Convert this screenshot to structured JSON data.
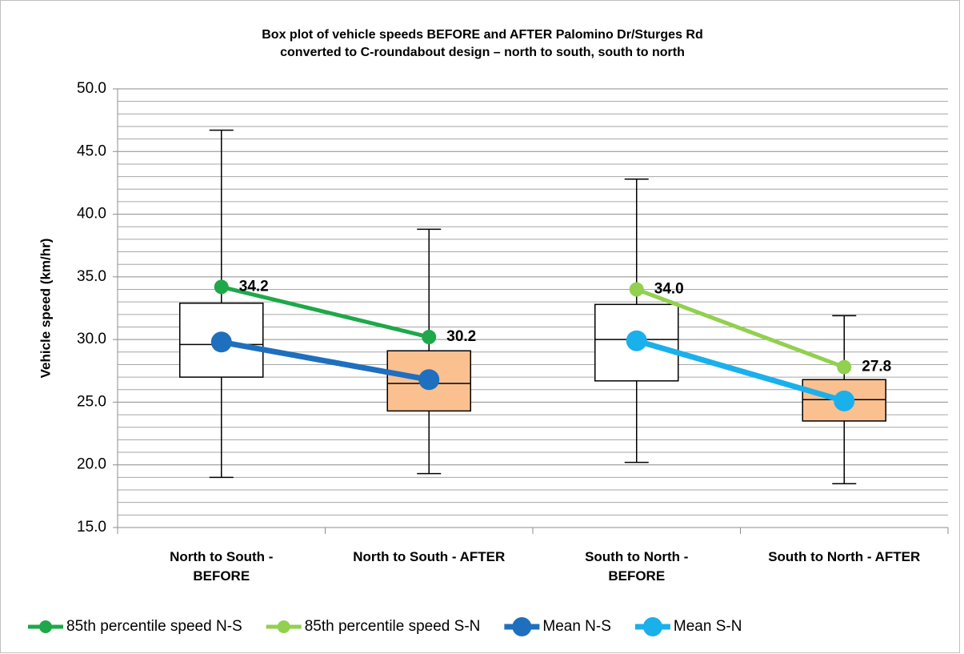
{
  "chart_data": {
    "type": "box",
    "title": [
      "Box plot of vehicle speeds BEFORE and AFTER Palomino Dr/Sturges Rd",
      "converted to C-roundabout design – north to south, south to north"
    ],
    "y_label": "Vehicle speed (km/hr)",
    "categories": [
      "North to South - BEFORE",
      "North to South - AFTER",
      "South to North - BEFORE",
      "South to North - AFTER"
    ],
    "boxes": [
      {
        "min": 19.0,
        "q1": 27.0,
        "median": 29.6,
        "q3": 32.9,
        "max": 46.7
      },
      {
        "min": 19.3,
        "q1": 24.3,
        "median": 26.5,
        "q3": 29.1,
        "max": 38.8
      },
      {
        "min": 20.2,
        "q1": 26.7,
        "median": 30.0,
        "q3": 32.8,
        "max": 42.8
      },
      {
        "min": 18.5,
        "q1": 23.5,
        "median": 25.2,
        "q3": 26.8,
        "max": 31.9
      }
    ],
    "box_colors": [
      "#ffffff",
      "#fac090",
      "#ffffff",
      "#fac090"
    ],
    "series": [
      {
        "name": "85th percentile speed N-S",
        "color": "#1ea84a",
        "values": [
          34.2,
          30.2,
          null,
          null
        ],
        "value_labels": [
          "34.2",
          "30.2",
          null,
          null
        ]
      },
      {
        "name": "85th percentile speed S-N",
        "color": "#92d050",
        "values": [
          null,
          null,
          34.0,
          27.8
        ],
        "value_labels": [
          null,
          null,
          "34.0",
          "27.8"
        ]
      },
      {
        "name": "Mean N-S",
        "color": "#1f6fbf",
        "values": [
          29.8,
          26.8,
          null,
          null
        ]
      },
      {
        "name": "Mean S-N",
        "color": "#1ab0ec",
        "values": [
          null,
          null,
          29.9,
          25.1
        ]
      }
    ],
    "ylim": [
      15,
      50
    ],
    "yticks": [
      {
        "value": 15,
        "label": "15.0"
      },
      {
        "value": 20,
        "label": "20.0"
      },
      {
        "value": 25,
        "label": "25.0"
      },
      {
        "value": 30,
        "label": "30.0"
      },
      {
        "value": 35,
        "label": "35.0"
      },
      {
        "value": 40,
        "label": "40.0"
      },
      {
        "value": 45,
        "label": "45.0"
      },
      {
        "value": 50,
        "label": "50.0"
      }
    ],
    "minor_yticks": [
      16,
      17,
      18,
      19,
      21,
      22,
      23,
      24,
      26,
      27,
      28,
      29,
      31,
      32,
      33,
      34,
      36,
      37,
      38,
      39,
      41,
      42,
      43,
      44,
      46,
      47,
      48,
      49
    ],
    "grid": true,
    "legend": "bottom"
  }
}
